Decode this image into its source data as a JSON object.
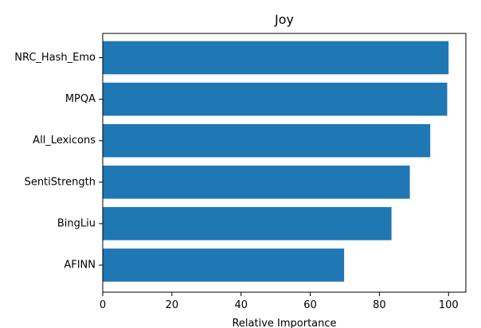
{
  "chart_data": {
    "type": "bar",
    "orientation": "horizontal",
    "title": "Joy",
    "xlabel": "Relative Importance",
    "ylabel": "",
    "categories": [
      "NRC_Hash_Emo",
      "MPQA",
      "All_Lexicons",
      "SentiStrength",
      "BingLiu",
      "AFINN"
    ],
    "values": [
      100,
      99.6,
      94.7,
      88.8,
      83.5,
      69.8
    ],
    "xlim": [
      0,
      105
    ],
    "xticks": [
      0,
      20,
      40,
      60,
      80,
      100
    ],
    "xtick_labels": [
      "0",
      "20",
      "40",
      "60",
      "80",
      "100"
    ],
    "bar_color": "#1f77b4",
    "grid": false,
    "legend": "none"
  }
}
